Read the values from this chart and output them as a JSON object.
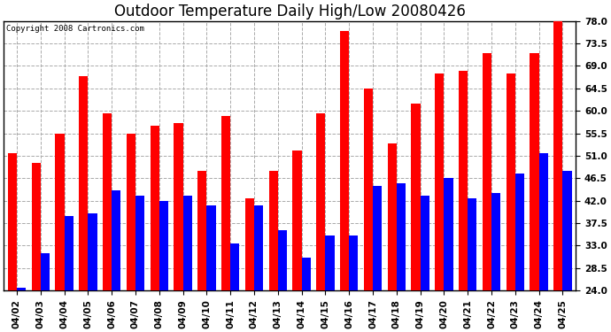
{
  "title": "Outdoor Temperature Daily High/Low 20080426",
  "copyright": "Copyright 2008 Cartronics.com",
  "dates": [
    "04/02",
    "04/03",
    "04/04",
    "04/05",
    "04/06",
    "04/07",
    "04/08",
    "04/09",
    "04/10",
    "04/11",
    "04/12",
    "04/13",
    "04/14",
    "04/15",
    "04/16",
    "04/17",
    "04/18",
    "04/19",
    "04/20",
    "04/21",
    "04/22",
    "04/23",
    "04/24",
    "04/25"
  ],
  "highs": [
    51.5,
    49.5,
    55.5,
    67.0,
    59.5,
    55.5,
    57.0,
    57.5,
    48.0,
    59.0,
    42.5,
    48.0,
    52.0,
    59.5,
    76.0,
    64.5,
    53.5,
    61.5,
    67.5,
    68.0,
    71.5,
    67.5,
    71.5,
    78.0
  ],
  "lows": [
    24.5,
    31.5,
    39.0,
    39.5,
    44.0,
    43.0,
    42.0,
    43.0,
    41.0,
    33.5,
    41.0,
    36.0,
    30.5,
    35.0,
    35.0,
    45.0,
    45.5,
    43.0,
    46.5,
    42.5,
    43.5,
    47.5,
    51.5,
    48.0
  ],
  "high_color": "#FF0000",
  "low_color": "#0000FF",
  "bg_color": "#FFFFFF",
  "plot_bg_color": "#FFFFFF",
  "grid_color": "#AAAAAA",
  "ylim": [
    24.0,
    78.0
  ],
  "ybase": 24.0,
  "yticks": [
    24.0,
    28.5,
    33.0,
    37.5,
    42.0,
    46.5,
    51.0,
    55.5,
    60.0,
    64.5,
    69.0,
    73.5,
    78.0
  ],
  "title_fontsize": 12,
  "tick_fontsize": 7.5,
  "bar_width": 0.38
}
